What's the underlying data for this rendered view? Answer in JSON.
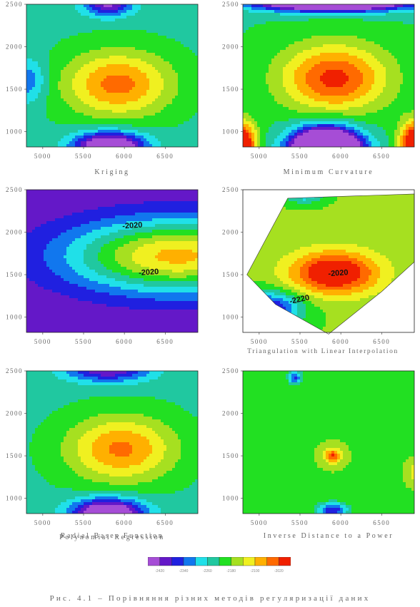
{
  "chart_data": [
    {
      "type": "heatmap",
      "title": "Kriging",
      "x_ticks": [
        "5000",
        "5500",
        "6000",
        "6500"
      ],
      "y_ticks": [
        "1000",
        "1500",
        "2000",
        "2500"
      ],
      "xlim": [
        4800,
        6900
      ],
      "ylim": [
        820,
        2500
      ],
      "min": -2620,
      "max": -1975,
      "contour_labels": [],
      "features": [
        {
          "kind": "gauss",
          "x": 5920,
          "y": 1560,
          "v": 250,
          "sx": 650,
          "sy": 380
        },
        {
          "kind": "gauss",
          "x": 5820,
          "y": 820,
          "v": -440,
          "sx": 420,
          "sy": 170
        },
        {
          "kind": "gauss",
          "x": 5800,
          "y": 2510,
          "v": -270,
          "sx": 300,
          "sy": 150
        },
        {
          "kind": "gauss",
          "x": 4820,
          "y": 1600,
          "v": -140,
          "sx": 220,
          "sy": 260
        }
      ],
      "base": -2310,
      "tilt": 0
    },
    {
      "type": "heatmap",
      "title": "Minimum Curvature",
      "x_ticks": [
        "5000",
        "5500",
        "6000",
        "6500"
      ],
      "y_ticks": [
        "1000",
        "1500",
        "2000",
        "2500"
      ],
      "xlim": [
        4800,
        6900
      ],
      "ylim": [
        820,
        2500
      ],
      "min": -2620,
      "max": -1975,
      "contour_labels": [],
      "features": [
        {
          "kind": "gauss",
          "x": 5920,
          "y": 1630,
          "v": 290,
          "sx": 650,
          "sy": 400
        },
        {
          "kind": "gauss",
          "x": 5820,
          "y": 760,
          "v": -900,
          "sx": 400,
          "sy": 260
        },
        {
          "kind": "gauss",
          "x": 5900,
          "y": 2540,
          "v": -700,
          "sx": 900,
          "sy": 110
        },
        {
          "kind": "gauss",
          "x": 4780,
          "y": 850,
          "v": 420,
          "sx": 180,
          "sy": 260
        },
        {
          "kind": "gauss",
          "x": 6900,
          "y": 850,
          "v": 420,
          "sx": 180,
          "sy": 260
        }
      ],
      "base": -2300,
      "tilt": 0
    },
    {
      "type": "heatmap",
      "title": "Polynomial Regression",
      "x_ticks": [
        "5000",
        "5500",
        "6000",
        "6500"
      ],
      "y_ticks": [
        "1000",
        "1500",
        "2000",
        "2500"
      ],
      "xlim": [
        4800,
        6900
      ],
      "ylim": [
        820,
        2500
      ],
      "min": -2620,
      "max": -1975,
      "contour_labels": [
        "-2020",
        "-2020"
      ],
      "features": [
        {
          "kind": "gauss",
          "x": 6650,
          "y": 1720,
          "v": 440,
          "sx": 1350,
          "sy": 430
        }
      ],
      "base": -2560,
      "tilt": 0
    },
    {
      "type": "heatmap",
      "title": "Triangulation with Linear Interpolation",
      "x_ticks": [
        "5000",
        "5500",
        "6000",
        "6500"
      ],
      "y_ticks": [
        "1000",
        "1500",
        "2000",
        "2500"
      ],
      "xlim": [
        4800,
        6900
      ],
      "ylim": [
        820,
        2500
      ],
      "min": -2620,
      "max": -1975,
      "contour_labels": [
        "-2020",
        "-2220"
      ],
      "features": [
        {
          "kind": "gauss",
          "x": 5920,
          "y": 1520,
          "v": 300,
          "sx": 550,
          "sy": 260
        },
        {
          "kind": "gauss",
          "x": 5100,
          "y": 1100,
          "v": -300,
          "sx": 400,
          "sy": 200
        },
        {
          "kind": "gauss",
          "x": 5550,
          "y": 2430,
          "v": -150,
          "sx": 220,
          "sy": 90
        }
      ],
      "base": -2240,
      "tilt": 0
    },
    {
      "type": "heatmap",
      "title": "Radial Bases Function",
      "x_ticks": [
        "5000",
        "5500",
        "6000",
        "6500"
      ],
      "y_ticks": [
        "1000",
        "1500",
        "2000",
        "2500"
      ],
      "xlim": [
        4800,
        6900
      ],
      "ylim": [
        820,
        2500
      ],
      "min": -2620,
      "max": -1975,
      "contour_labels": [],
      "features": [
        {
          "kind": "gauss",
          "x": 5960,
          "y": 1580,
          "v": 240,
          "sx": 650,
          "sy": 380
        },
        {
          "kind": "gauss",
          "x": 5800,
          "y": 820,
          "v": -430,
          "sx": 430,
          "sy": 170
        },
        {
          "kind": "gauss",
          "x": 5800,
          "y": 2520,
          "v": -260,
          "sx": 520,
          "sy": 150
        }
      ],
      "base": -2310,
      "tilt": 0
    },
    {
      "type": "heatmap",
      "title": "Inverse Distance to a Power",
      "x_ticks": [
        "5000",
        "5500",
        "6000",
        "6500"
      ],
      "y_ticks": [
        "1000",
        "1500",
        "2000",
        "2500"
      ],
      "xlim": [
        4800,
        6900
      ],
      "ylim": [
        820,
        2500
      ],
      "min": -2620,
      "max": -1975,
      "contour_labels": [],
      "features": [
        {
          "kind": "gauss",
          "x": 5900,
          "y": 1500,
          "v": 230,
          "sx": 100,
          "sy": 85
        },
        {
          "kind": "gauss",
          "x": 5900,
          "y": 860,
          "v": -260,
          "sx": 190,
          "sy": 90
        },
        {
          "kind": "gauss",
          "x": 5440,
          "y": 2420,
          "v": -230,
          "sx": 85,
          "sy": 80
        },
        {
          "kind": "gauss",
          "x": 6920,
          "y": 1300,
          "v": 120,
          "sx": 80,
          "sy": 100
        }
      ],
      "base": -2245,
      "tilt": 0
    }
  ],
  "legend": {
    "colors": [
      "#a64dd6",
      "#6418c8",
      "#2020e0",
      "#1177ee",
      "#20e0e8",
      "#20c8a0",
      "#22e022",
      "#a6e020",
      "#f0f020",
      "#ffb000",
      "#ff6a00",
      "#f02000"
    ],
    "labels": [
      "-2420",
      "-2340",
      "-2260",
      "-2180",
      "-2100",
      "-2020"
    ]
  },
  "caption": "Рис. 4.1 – Порівняння різних методів регуляризації даних"
}
